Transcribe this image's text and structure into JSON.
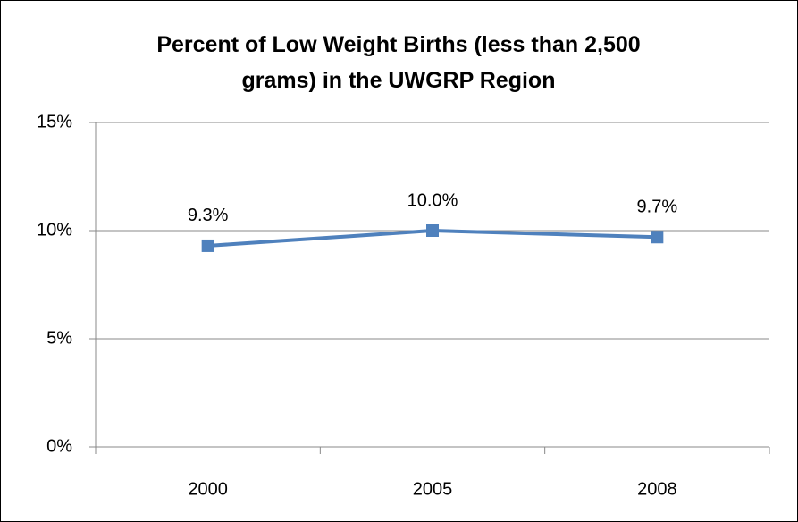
{
  "chart_data": {
    "type": "line",
    "title": "Percent of Low Weight Births (less than 2,500 grams) in the UWGRP Region",
    "categories": [
      "2000",
      "2005",
      "2008"
    ],
    "series": [
      {
        "name": "Low Weight Births",
        "color": "#4f81bd",
        "values": [
          9.3,
          10.0,
          9.7
        ],
        "value_labels": [
          "9.3%",
          "10.0%",
          "9.7%"
        ]
      }
    ],
    "ylim": [
      0,
      15
    ],
    "yticks": [
      {
        "value": 0,
        "label": "0%"
      },
      {
        "value": 5,
        "label": "5%"
      },
      {
        "value": 10,
        "label": "10%"
      },
      {
        "value": 15,
        "label": "15%"
      }
    ],
    "grid": true,
    "legend": false
  }
}
